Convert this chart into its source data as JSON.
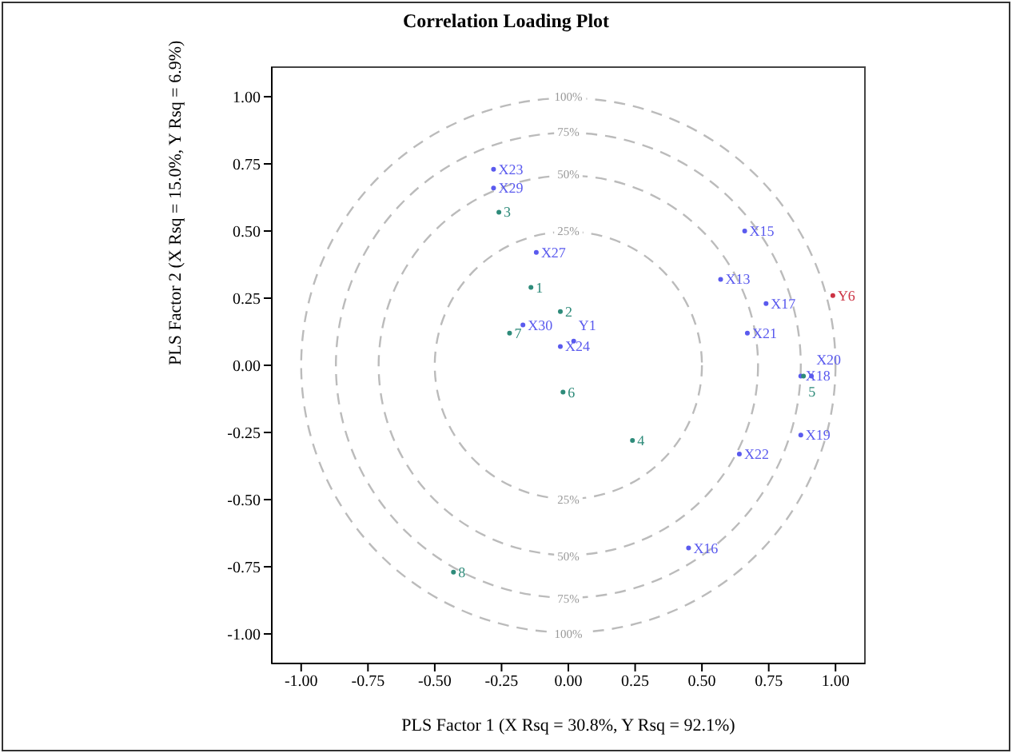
{
  "chart_data": {
    "type": "scatter",
    "title": "Correlation Loading Plot",
    "xlabel": "PLS Factor 1 (X Rsq = 30.8%, Y Rsq = 92.1%)",
    "ylabel": "PLS Factor 2 (X Rsq = 15.0%, Y Rsq = 6.9%)",
    "xlim": [
      -1.11,
      1.11
    ],
    "ylim": [
      -1.11,
      1.11
    ],
    "xticks": [
      {
        "value": -1,
        "label": "-1.00"
      },
      {
        "value": -0.75,
        "label": "-0.75"
      },
      {
        "value": -0.5,
        "label": "-0.50"
      },
      {
        "value": -0.25,
        "label": "-0.25"
      },
      {
        "value": 0,
        "label": "0.00"
      },
      {
        "value": 0.25,
        "label": "0.25"
      },
      {
        "value": 0.5,
        "label": "0.50"
      },
      {
        "value": 0.75,
        "label": "0.75"
      },
      {
        "value": 1,
        "label": "1.00"
      }
    ],
    "yticks": [
      {
        "value": -1,
        "label": "-1.00"
      },
      {
        "value": -0.75,
        "label": "-0.75"
      },
      {
        "value": -0.5,
        "label": "-0.50"
      },
      {
        "value": -0.25,
        "label": "-0.25"
      },
      {
        "value": 0,
        "label": "0.00"
      },
      {
        "value": 0.25,
        "label": "0.25"
      },
      {
        "value": 0.5,
        "label": "0.50"
      },
      {
        "value": 0.75,
        "label": "0.75"
      },
      {
        "value": 1,
        "label": "1.00"
      }
    ],
    "grid": false,
    "legend": false,
    "marker": "circle",
    "annotations": [
      "100%",
      "75%",
      "50%",
      "25%",
      "25%",
      "50%",
      "75%",
      "100%"
    ],
    "series": [
      {
        "name": "X23",
        "color": "#5a5aee",
        "x": [
          -0.28
        ],
        "values": [
          0.73
        ]
      },
      {
        "name": "X29",
        "color": "#5a5aee",
        "x": [
          -0.28
        ],
        "values": [
          0.66
        ]
      },
      {
        "name": "3",
        "color": "#2e8b7a",
        "x": [
          -0.26
        ],
        "values": [
          0.57
        ]
      },
      {
        "name": "X27",
        "color": "#5a5aee",
        "x": [
          -0.12
        ],
        "values": [
          0.42
        ]
      },
      {
        "name": "1",
        "color": "#2e8b7a",
        "x": [
          -0.14
        ],
        "values": [
          0.29
        ]
      },
      {
        "name": "2",
        "color": "#2e8b7a",
        "x": [
          -0.03
        ],
        "values": [
          0.2
        ]
      },
      {
        "name": "X30",
        "color": "#5a5aee",
        "x": [
          -0.17
        ],
        "values": [
          0.15
        ]
      },
      {
        "name": "7",
        "color": "#2e8b7a",
        "x": [
          -0.22
        ],
        "values": [
          0.12
        ]
      },
      {
        "name": "X24",
        "color": "#5a5aee",
        "x": [
          -0.03
        ],
        "values": [
          0.07
        ]
      },
      {
        "name": "Y1",
        "color": "#5a5aee",
        "x": [
          0.02
        ],
        "values": [
          0.09
        ]
      },
      {
        "name": "X15",
        "color": "#5a5aee",
        "x": [
          0.66
        ],
        "values": [
          0.5
        ]
      },
      {
        "name": "X13",
        "color": "#5a5aee",
        "x": [
          0.57
        ],
        "values": [
          0.32
        ]
      },
      {
        "name": "X17",
        "color": "#5a5aee",
        "x": [
          0.74
        ],
        "values": [
          0.23
        ]
      },
      {
        "name": "Y6",
        "color": "#cc3344",
        "x": [
          0.99
        ],
        "values": [
          0.26
        ]
      },
      {
        "name": "X21",
        "color": "#5a5aee",
        "x": [
          0.67
        ],
        "values": [
          0.12
        ]
      },
      {
        "name": "X18",
        "color": "#5a5aee",
        "x": [
          0.87
        ],
        "values": [
          -0.04
        ]
      },
      {
        "name": "5",
        "color": "#2e8b7a",
        "x": [
          0.88
        ],
        "values": [
          -0.04
        ]
      },
      {
        "name": "X20",
        "color": "#5a5aee",
        "x": [
          0.91
        ],
        "values": [
          -0.04
        ]
      },
      {
        "name": "X19",
        "color": "#5a5aee",
        "x": [
          0.87
        ],
        "values": [
          -0.26
        ]
      },
      {
        "name": "X22",
        "color": "#5a5aee",
        "x": [
          0.64
        ],
        "values": [
          -0.33
        ]
      },
      {
        "name": "4",
        "color": "#2e8b7a",
        "x": [
          0.24
        ],
        "values": [
          -0.28
        ]
      },
      {
        "name": "6",
        "color": "#2e8b7a",
        "x": [
          -0.02
        ],
        "values": [
          -0.1
        ]
      },
      {
        "name": "X16",
        "color": "#5a5aee",
        "x": [
          0.45
        ],
        "values": [
          -0.68
        ]
      },
      {
        "name": "8",
        "color": "#2e8b7a",
        "x": [
          -0.43
        ],
        "values": [
          -0.77
        ]
      }
    ]
  }
}
